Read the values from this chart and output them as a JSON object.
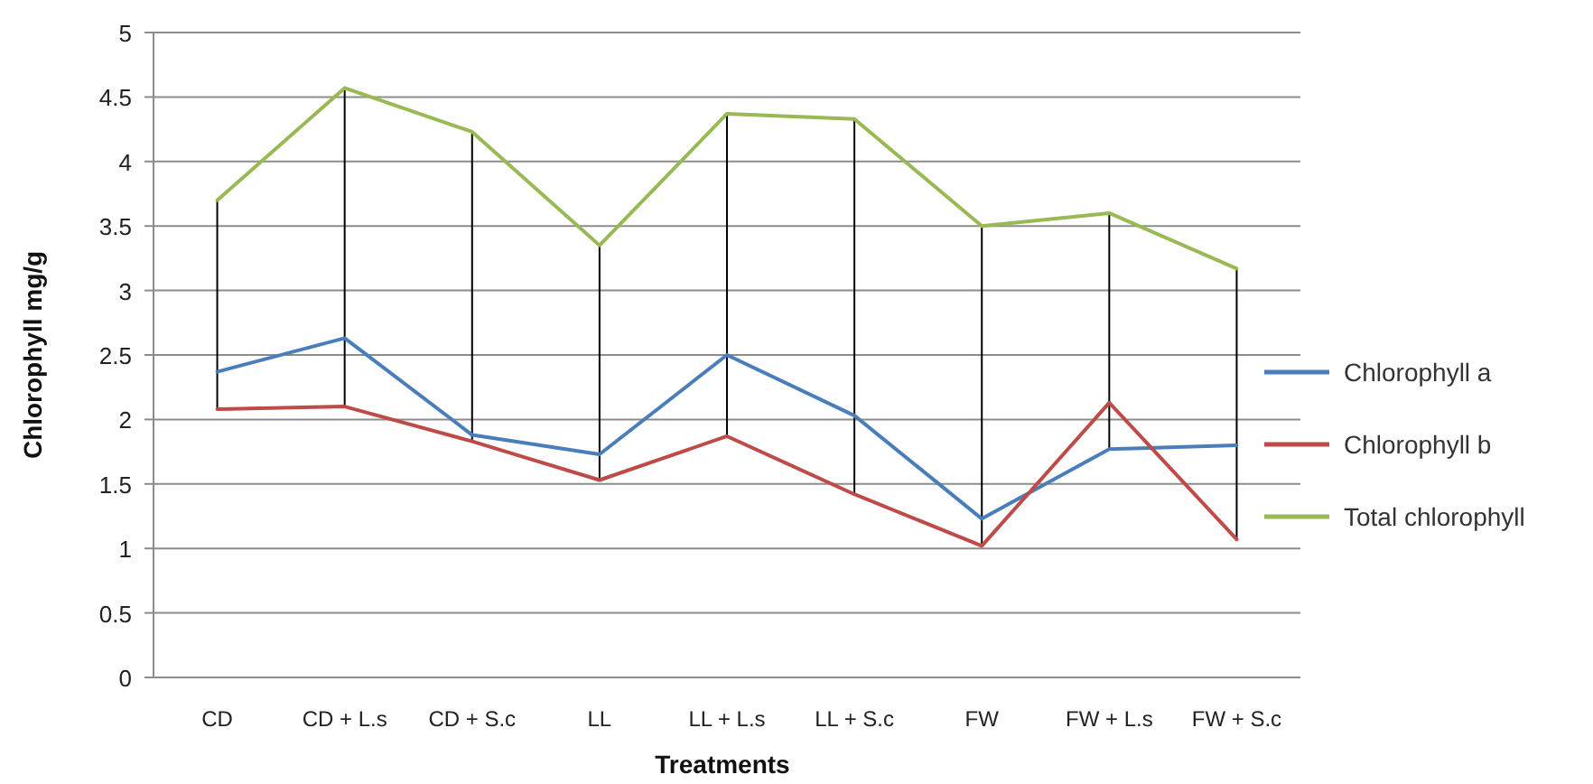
{
  "chart_data": {
    "type": "line",
    "xlabel": "Treatments",
    "ylabel": "Chlorophyll mg/g",
    "categories": [
      "CD",
      "CD + L.s",
      "CD + S.c",
      "LL",
      "LL + L.s",
      "LL + S.c",
      "FW",
      "FW + L.s",
      "FW + S.c"
    ],
    "series": [
      {
        "name": "Chlorophyll a",
        "color": "#4a7ebb",
        "values": [
          2.37,
          2.63,
          1.88,
          1.73,
          2.5,
          2.03,
          1.23,
          1.77,
          1.8
        ]
      },
      {
        "name": "Chlorophyll b",
        "color": "#be4b48",
        "values": [
          2.08,
          2.1,
          1.83,
          1.53,
          1.87,
          1.42,
          1.02,
          2.13,
          1.07
        ]
      },
      {
        "name": "Total chlorophyll",
        "color": "#98b954",
        "values": [
          3.7,
          4.57,
          4.23,
          3.35,
          4.37,
          4.33,
          3.5,
          3.6,
          3.17
        ]
      }
    ],
    "ylim": [
      0,
      5
    ],
    "yticks": [
      0,
      0.5,
      1,
      1.5,
      2,
      2.5,
      3,
      3.5,
      4,
      4.5,
      5
    ],
    "grid": "y",
    "legend": "right",
    "marker": "none",
    "line_style": "solid"
  }
}
